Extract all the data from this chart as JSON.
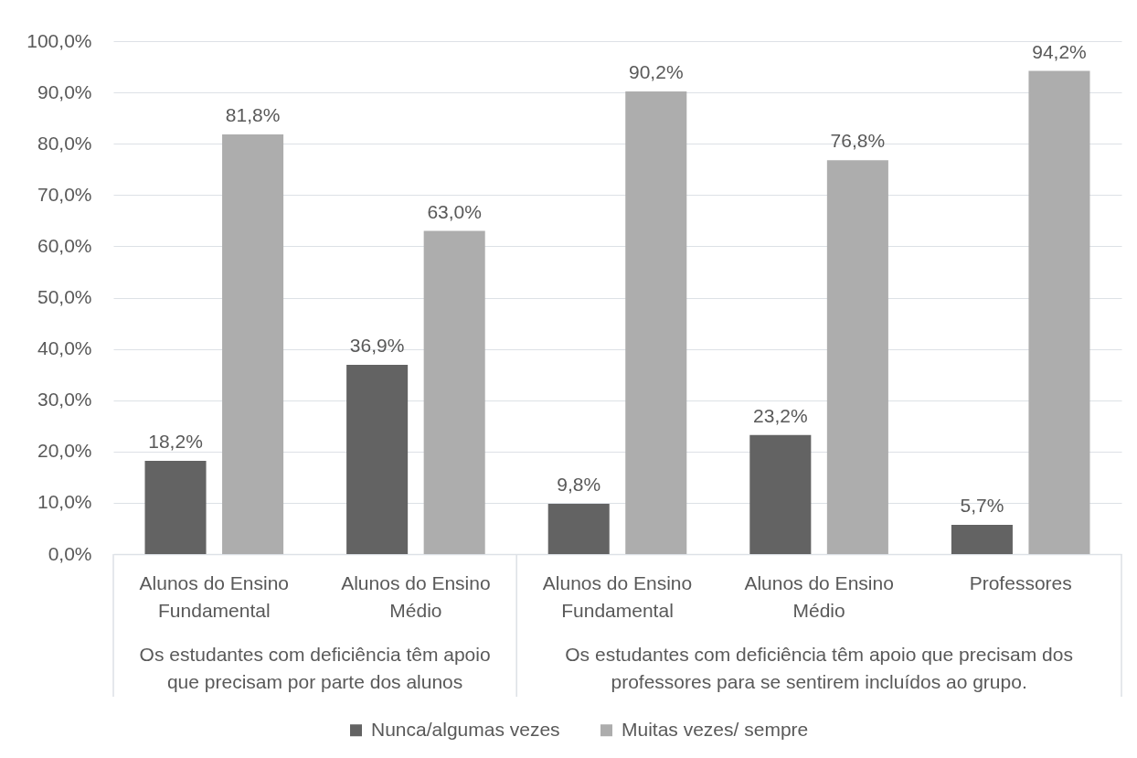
{
  "chart_data": {
    "type": "bar",
    "categories": [
      "Alunos do Ensino Fundamental",
      "Alunos do Ensino Médio",
      "Alunos do Ensino Fundamental",
      "Alunos do Ensino Médio",
      "Professores"
    ],
    "series": [
      {
        "name": "Nunca/algumas vezes",
        "color": "#636363",
        "values": [
          18.2,
          36.9,
          9.8,
          23.2,
          5.7
        ],
        "value_labels": [
          "18,2%",
          "36,9%",
          "9,8%",
          "23,2%",
          "5,7%"
        ]
      },
      {
        "name": "Muitas vezes/ sempre",
        "color": "#adadad",
        "values": [
          81.8,
          63.0,
          90.2,
          76.8,
          94.2
        ],
        "value_labels": [
          "81,8%",
          "63,0%",
          "90,2%",
          "76,8%",
          "94,2%"
        ]
      }
    ],
    "ylim": [
      0,
      100
    ],
    "yticks": [
      {
        "value": 0,
        "label": "0,0%"
      },
      {
        "value": 10,
        "label": "10,0%"
      },
      {
        "value": 20,
        "label": "20,0%"
      },
      {
        "value": 30,
        "label": "30,0%"
      },
      {
        "value": 40,
        "label": "40,0%"
      },
      {
        "value": 50,
        "label": "50,0%"
      },
      {
        "value": 60,
        "label": "60,0%"
      },
      {
        "value": 70,
        "label": "70,0%"
      },
      {
        "value": 80,
        "label": "80,0%"
      },
      {
        "value": 90,
        "label": "90,0%"
      },
      {
        "value": 100,
        "label": "100,0%"
      }
    ],
    "grid": "y",
    "legend": "bottom",
    "annotations": [
      "Os estudantes com deficiência têm apoio que precisam por parte dos alunos",
      "Os estudantes com deficiência têm apoio que precisam dos professores para se sentirem incluídos ao grupo."
    ]
  }
}
